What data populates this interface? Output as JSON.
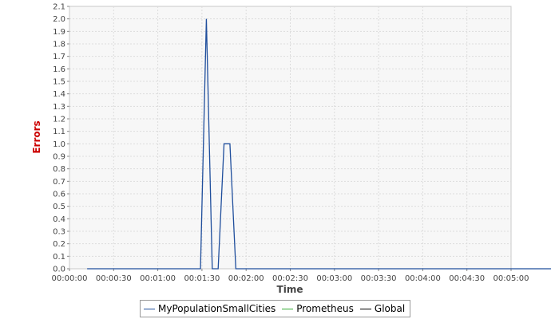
{
  "chart_data": {
    "type": "line",
    "title": "",
    "xlabel": "Time",
    "ylabel": "Errors",
    "xlim": [
      0,
      300
    ],
    "ylim": [
      0,
      2.1
    ],
    "x_ticks": [
      "00:00:00",
      "00:00:30",
      "00:01:00",
      "00:01:30",
      "00:02:00",
      "00:02:30",
      "00:03:00",
      "00:03:30",
      "00:04:00",
      "00:04:30",
      "00:05:00"
    ],
    "y_ticks": [
      "0.0",
      "0.1",
      "0.2",
      "0.3",
      "0.4",
      "0.5",
      "0.6",
      "0.7",
      "0.8",
      "0.9",
      "1.0",
      "1.1",
      "1.2",
      "1.3",
      "1.4",
      "1.5",
      "1.6",
      "1.7",
      "1.8",
      "1.9",
      "2.0",
      "2.1"
    ],
    "grid": true,
    "legend_position": "bottom",
    "series": [
      {
        "name": "MyPopulationSmallCities",
        "color": "#1f4e9c",
        "x": [
          12,
          89,
          93,
          97,
          101,
          105,
          109,
          113,
          117,
          367,
          295
        ],
        "y": [
          0,
          0,
          2.0,
          0,
          0,
          1.0,
          1.0,
          0,
          0,
          0,
          0
        ]
      },
      {
        "name": "Prometheus",
        "color": "#33aa33",
        "x": [],
        "y": []
      },
      {
        "name": "Global",
        "color": "#000000",
        "x": [],
        "y": []
      }
    ]
  }
}
